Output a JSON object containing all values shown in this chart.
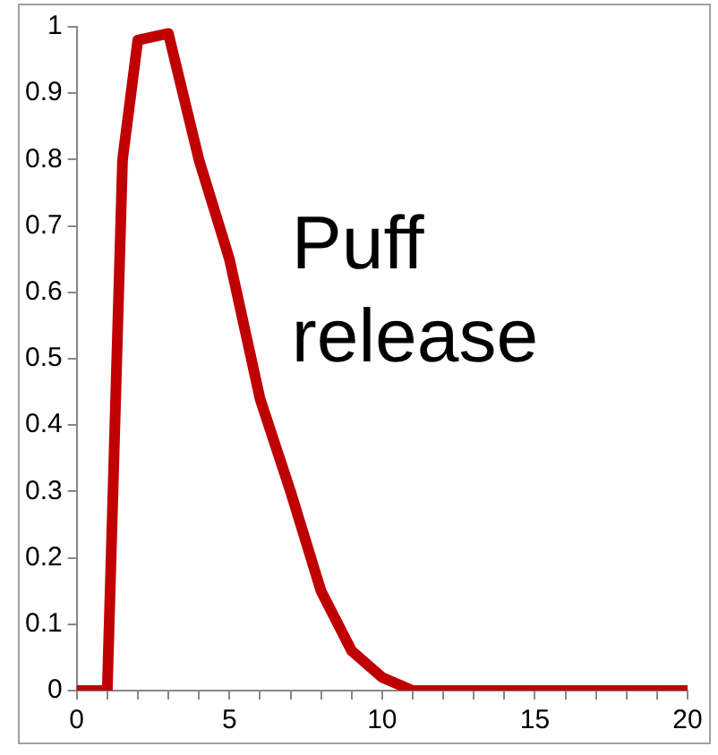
{
  "chart_data": {
    "type": "line",
    "x": [
      0,
      1,
      1.5,
      2,
      3,
      4,
      5,
      6,
      7,
      8,
      9,
      10,
      11,
      12,
      13,
      14,
      15,
      16,
      17,
      18,
      19,
      20
    ],
    "series": [
      {
        "color": "#c00000",
        "values": [
          0,
          0,
          0.8,
          0.98,
          0.99,
          0.8,
          0.65,
          0.44,
          0.3,
          0.15,
          0.06,
          0.02,
          0,
          0,
          0,
          0,
          0,
          0,
          0,
          0,
          0,
          0
        ]
      }
    ],
    "xlim": [
      0,
      20
    ],
    "xticks": [
      0,
      {
        "value": 1,
        "label": null
      },
      {
        "value": 2,
        "label": null
      },
      {
        "value": 3,
        "label": null
      },
      {
        "value": 4,
        "label": null
      },
      5,
      {
        "value": 6,
        "label": null
      },
      {
        "value": 7,
        "label": null
      },
      {
        "value": 8,
        "label": null
      },
      {
        "value": 9,
        "label": null
      },
      10,
      {
        "value": 11,
        "label": null
      },
      {
        "value": 12,
        "label": null
      },
      {
        "value": 13,
        "label": null
      },
      {
        "value": 14,
        "label": null
      },
      15,
      {
        "value": 16,
        "label": null
      },
      {
        "value": 17,
        "label": null
      },
      {
        "value": 18,
        "label": null
      },
      {
        "value": 19,
        "label": null
      },
      20
    ],
    "ylim": [
      0,
      1
    ],
    "yticks": [
      0,
      0.1,
      0.2,
      0.3,
      0.4,
      0.5,
      0.6,
      0.7,
      0.8,
      0.9,
      1
    ],
    "grid": false,
    "legend": false,
    "marker": "none",
    "line_style": "solid",
    "annotations": [
      "Puff\nrelease"
    ]
  }
}
